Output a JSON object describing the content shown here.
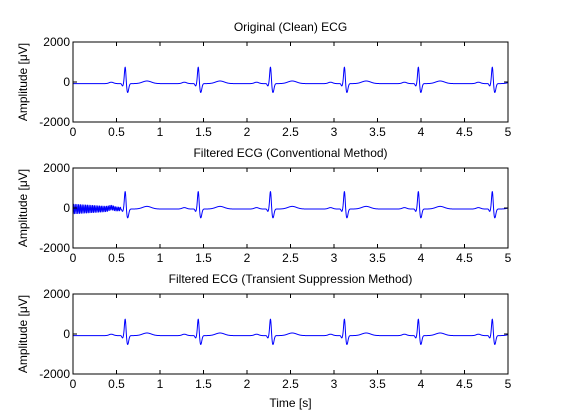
{
  "chart_data": [
    {
      "type": "line",
      "title": "Original (Clean) ECG",
      "xlabel": "",
      "ylabel": "Amplitude [μV]",
      "xlim": [
        0,
        5
      ],
      "ylim": [
        -2000,
        2000
      ],
      "x_ticks": [
        "0",
        "0.5",
        "1",
        "1.5",
        "2",
        "2.5",
        "3",
        "3.5",
        "4",
        "4.5",
        "5"
      ],
      "y_ticks": [
        "-2000",
        "0",
        "2000"
      ],
      "grid": false,
      "color": "#0000ff",
      "signal": {
        "baseline": -80,
        "r_peak_times": [
          0.6,
          1.44,
          2.27,
          3.12,
          3.97,
          4.82
        ],
        "r_amplitude": 850,
        "s_amplitude": -450,
        "t_amplitude": 130,
        "transient": null
      }
    },
    {
      "type": "line",
      "title": "Filtered ECG (Conventional Method)",
      "xlabel": "",
      "ylabel": "Amplitude [μV]",
      "xlim": [
        0,
        5
      ],
      "ylim": [
        -2000,
        2000
      ],
      "x_ticks": [
        "0",
        "0.5",
        "1",
        "1.5",
        "2",
        "2.5",
        "3",
        "3.5",
        "4",
        "4.5",
        "5"
      ],
      "y_ticks": [
        "-2000",
        "0",
        "2000"
      ],
      "grid": false,
      "color": "#0000ff",
      "signal": {
        "baseline": -50,
        "r_peak_times": [
          0.6,
          1.44,
          2.27,
          3.12,
          3.97,
          4.82
        ],
        "r_amplitude": 900,
        "s_amplitude": -450,
        "t_amplitude": 130,
        "transient": {
          "start": 0.0,
          "end": 0.55,
          "amplitude": 250
        }
      }
    },
    {
      "type": "line",
      "title": "Filtered ECG (Transient Suppression Method)",
      "xlabel": "Time [s]",
      "ylabel": "Amplitude [μV]",
      "xlim": [
        0,
        5
      ],
      "ylim": [
        -2000,
        2000
      ],
      "x_ticks": [
        "0",
        "0.5",
        "1",
        "1.5",
        "2",
        "2.5",
        "3",
        "3.5",
        "4",
        "4.5",
        "5"
      ],
      "y_ticks": [
        "-2000",
        "0",
        "2000"
      ],
      "grid": false,
      "color": "#0000ff",
      "signal": {
        "baseline": -80,
        "r_peak_times": [
          0.6,
          1.44,
          2.27,
          3.12,
          3.97,
          4.82
        ],
        "r_amplitude": 850,
        "s_amplitude": -450,
        "t_amplitude": 130,
        "transient": null
      }
    }
  ]
}
